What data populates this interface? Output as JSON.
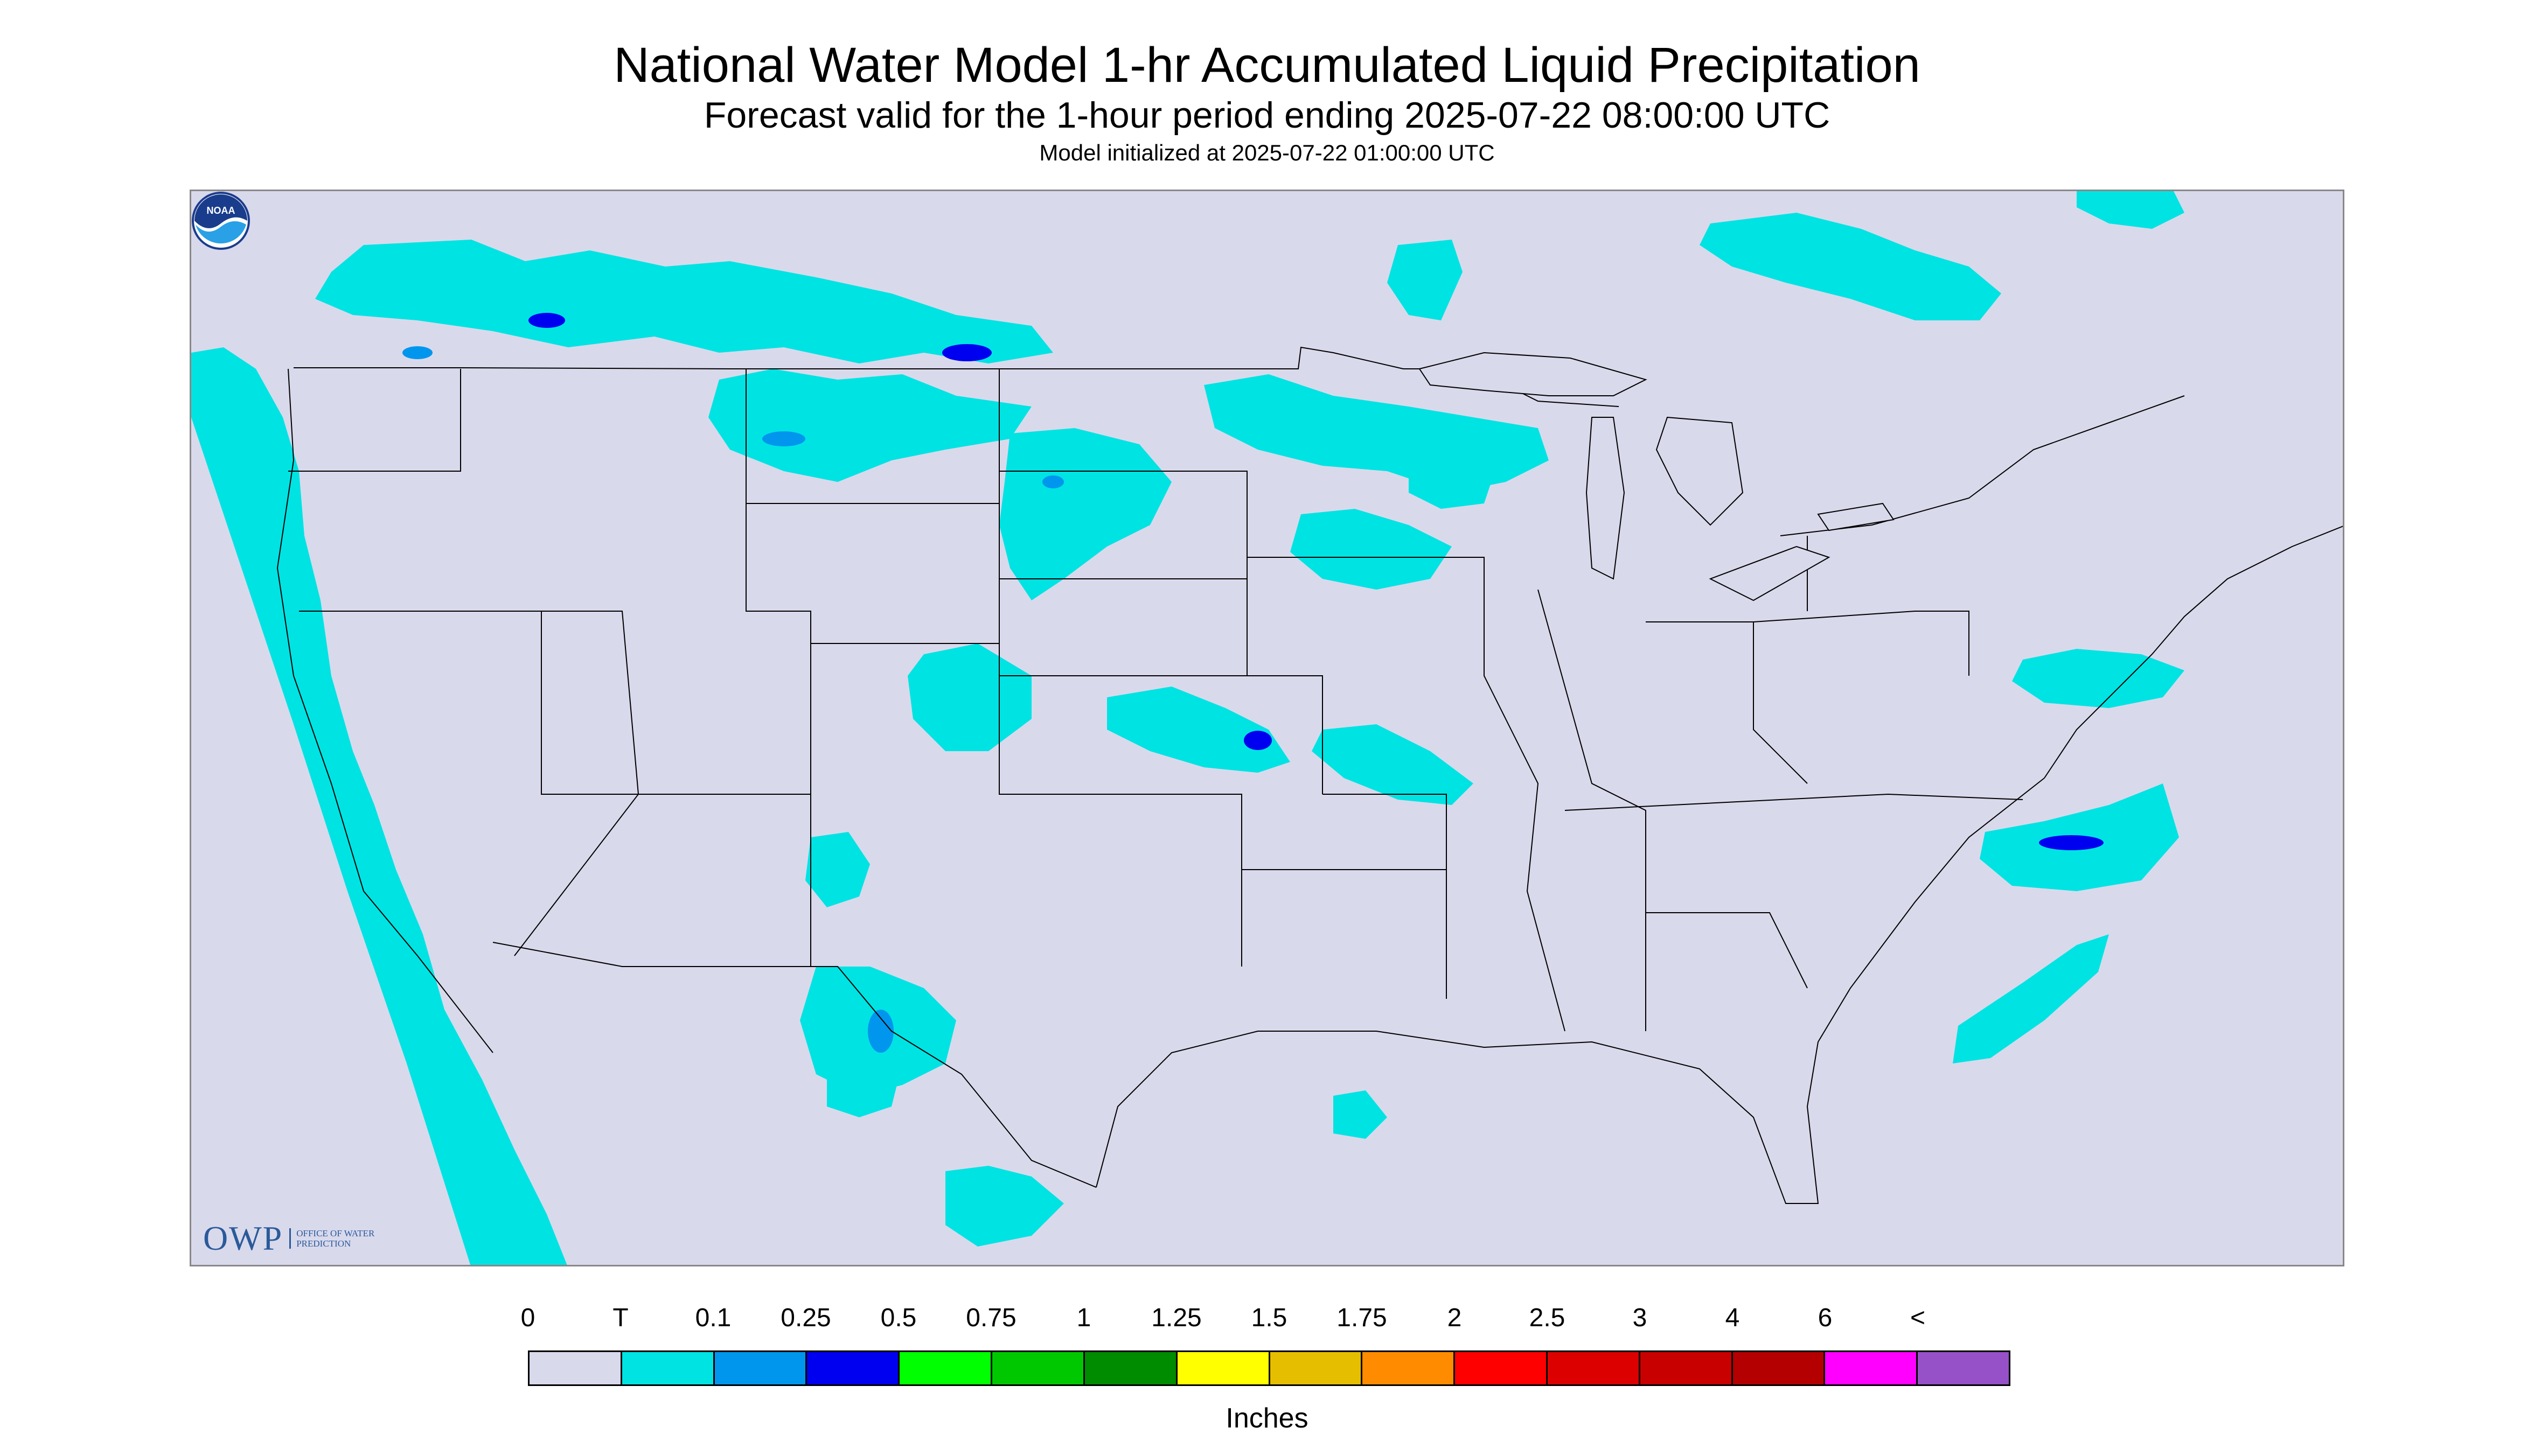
{
  "header": {
    "title": "National Water Model 1-hr Accumulated Liquid Precipitation",
    "subtitle": "Forecast valid for the 1-hour period ending 2025-07-22 08:00:00 UTC",
    "init_line": "Model initialized at 2025-07-22 01:00:00 UTC"
  },
  "map": {
    "background_color": "#d9d9ec",
    "precip_color": "#00e3e3",
    "boundary_color": "#000000",
    "region": "Continental United States"
  },
  "logos": {
    "owp_letters": "OWP",
    "owp_sub": "OFFICE OF WATER PREDICTION",
    "noaa": "NOAA"
  },
  "legend": {
    "ticks": [
      "0",
      "T",
      "0.1",
      "0.25",
      "0.5",
      "0.75",
      "1",
      "1.25",
      "1.5",
      "1.75",
      "2",
      "2.5",
      "3",
      "4",
      "6",
      "<"
    ],
    "colors": [
      "#d9d9ec",
      "#00e3e3",
      "#0096ee",
      "#0000f0",
      "#00ff00",
      "#00c800",
      "#008c00",
      "#ffff00",
      "#e6be00",
      "#ff8c00",
      "#ff0000",
      "#dc0000",
      "#c80000",
      "#b40000",
      "#ff00ff",
      "#9650c8"
    ],
    "units": "Inches"
  }
}
